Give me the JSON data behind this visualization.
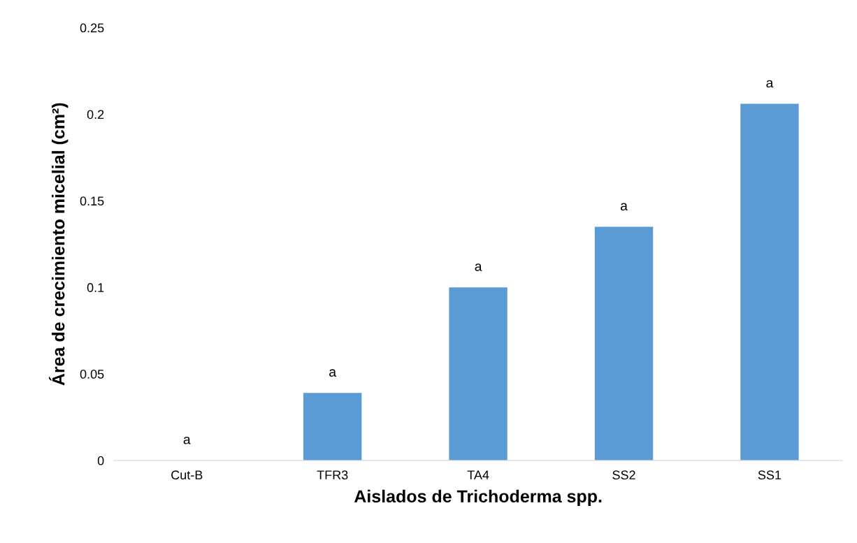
{
  "chart_data": {
    "type": "bar",
    "xlabel": "Aislados de Trichoderma spp.",
    "ylabel": "Área de crecimiento micelial (cm²)",
    "categories": [
      "Cut-B",
      "TFR3",
      "TA4",
      "SS2",
      "SS1"
    ],
    "values": [
      0,
      0.039,
      0.1,
      0.135,
      0.206
    ],
    "color": "#5b9bd5",
    "ylim": [
      0,
      0.25
    ],
    "yticks": [
      0,
      0.05,
      0.1,
      0.15,
      0.2,
      0.25
    ],
    "grid": false,
    "annotations": [
      {
        "text": "a",
        "x": "Cut-B",
        "y": 0
      },
      {
        "text": "a",
        "x": "TFR3",
        "y": 0.039
      },
      {
        "text": "a",
        "x": "TA4",
        "y": 0.1
      },
      {
        "text": "a",
        "x": "SS2",
        "y": 0.135
      },
      {
        "text": "a",
        "x": "SS1",
        "y": 0.206
      }
    ]
  }
}
